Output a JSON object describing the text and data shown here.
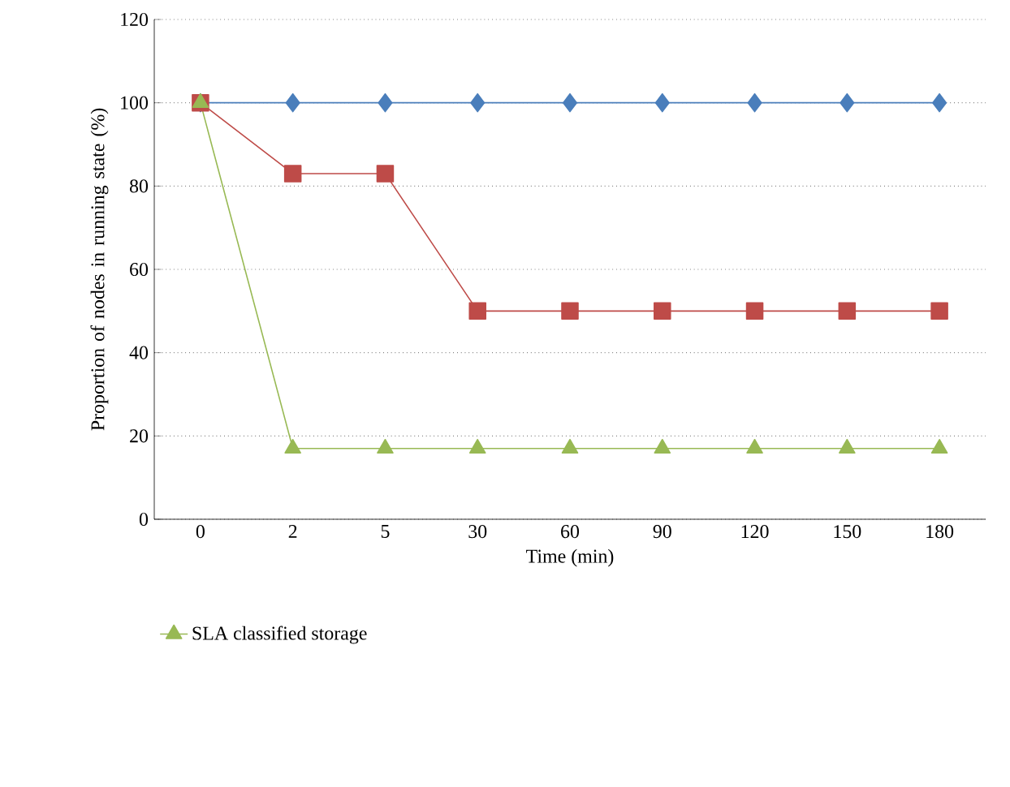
{
  "chart_data": {
    "type": "line",
    "xlabel": "Time (min)",
    "ylabel": "Proportion of nodes in running state (%)",
    "categories": [
      "0",
      "2",
      "5",
      "30",
      "60",
      "90",
      "120",
      "150",
      "180"
    ],
    "ylim": [
      0,
      120
    ],
    "yticks": [
      0,
      20,
      40,
      60,
      80,
      100,
      120
    ],
    "grid": "y",
    "legend": "bottom",
    "series": [
      {
        "color": "#4a7ebb",
        "marker": "diamond",
        "values": [
          100,
          100,
          100,
          100,
          100,
          100,
          100,
          100,
          100
        ]
      },
      {
        "color": "#be4b48",
        "marker": "square",
        "values": [
          100,
          83,
          83,
          50,
          50,
          50,
          50,
          50,
          50
        ]
      },
      {
        "name": "SLA classified storage",
        "color": "#98b954",
        "marker": "triangle",
        "values": [
          100,
          17,
          17,
          17,
          17,
          17,
          17,
          17,
          17
        ]
      }
    ]
  }
}
